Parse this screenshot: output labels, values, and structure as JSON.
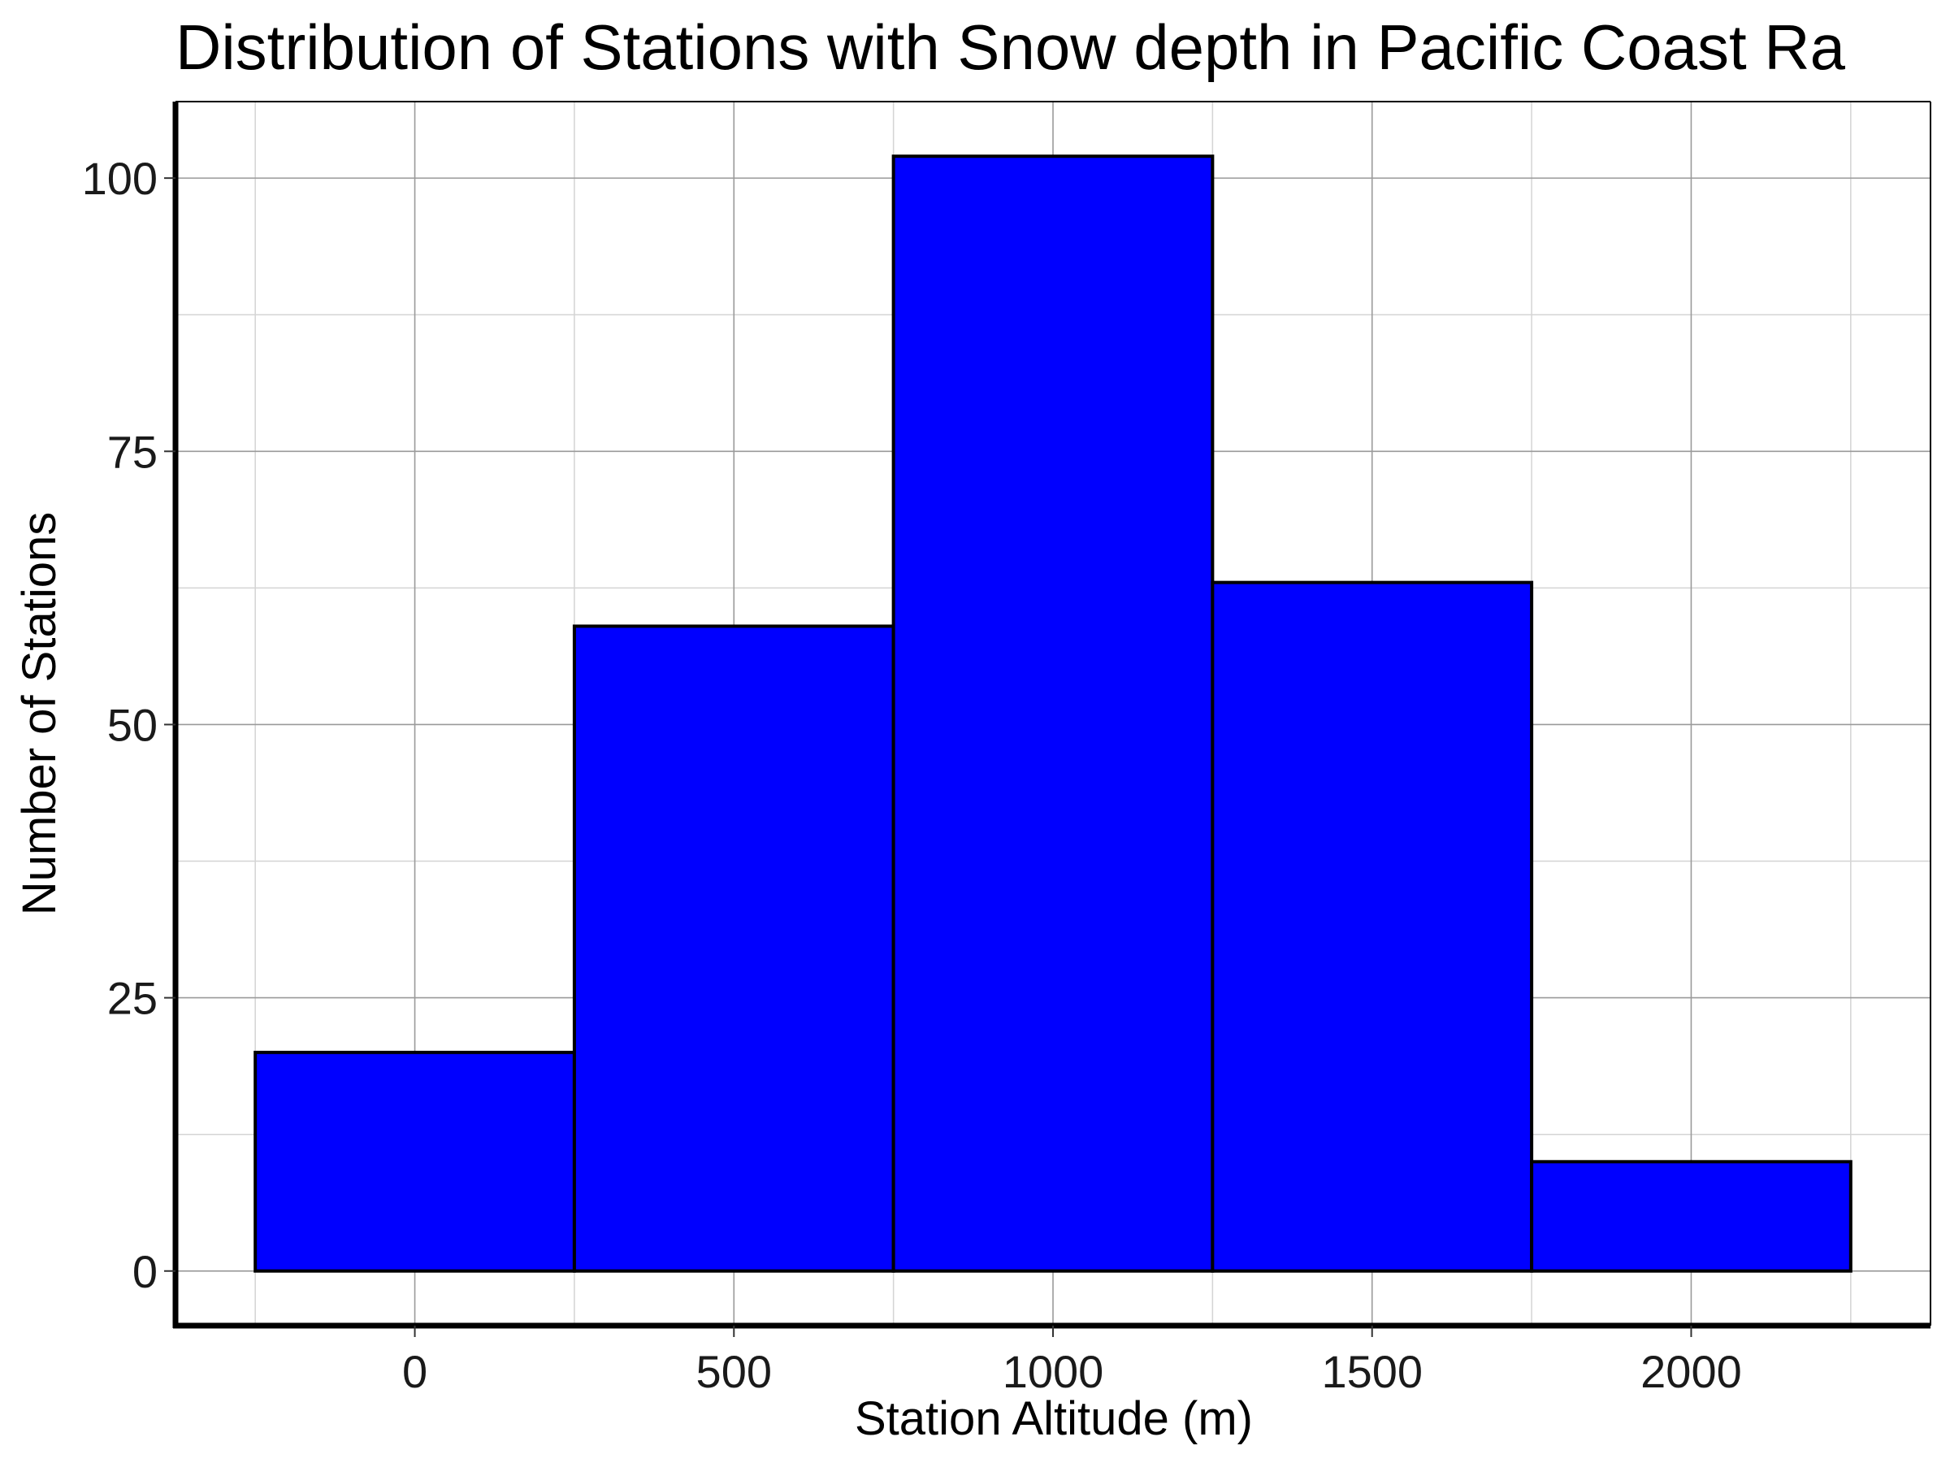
{
  "chart_data": {
    "type": "bar",
    "title": "Distribution of Stations with Snow depth in Pacific Coast Ra",
    "xlabel": "Station Altitude (m)",
    "ylabel": "Number of Stations",
    "bins": [
      {
        "x0": -250,
        "x1": 250,
        "count": 20
      },
      {
        "x0": 250,
        "x1": 750,
        "count": 59
      },
      {
        "x0": 750,
        "x1": 1250,
        "count": 102
      },
      {
        "x0": 1250,
        "x1": 1750,
        "count": 63
      },
      {
        "x0": 1750,
        "x1": 2250,
        "count": 10
      }
    ],
    "xlim": [
      -375,
      2375
    ],
    "ylim": [
      -5,
      107
    ],
    "x_ticks": [
      0,
      500,
      1000,
      1500,
      2000
    ],
    "x_tick_labels": [
      "0",
      "500",
      "1000",
      "1500",
      "2000"
    ],
    "y_ticks": [
      0,
      25,
      50,
      75,
      100
    ],
    "y_tick_labels": [
      "0",
      "25",
      "50",
      "75",
      "100"
    ],
    "x_minor_ticks": [
      -250,
      250,
      750,
      1250,
      1750,
      2250
    ],
    "y_minor_ticks": [
      12.5,
      37.5,
      62.5,
      87.5
    ],
    "grid": true,
    "colors": {
      "bar_fill": "#0000ff",
      "bar_stroke": "#000000",
      "grid_major": "#9a9a9a",
      "grid_minor": "#d4d4d4",
      "axis": "#000000"
    }
  }
}
